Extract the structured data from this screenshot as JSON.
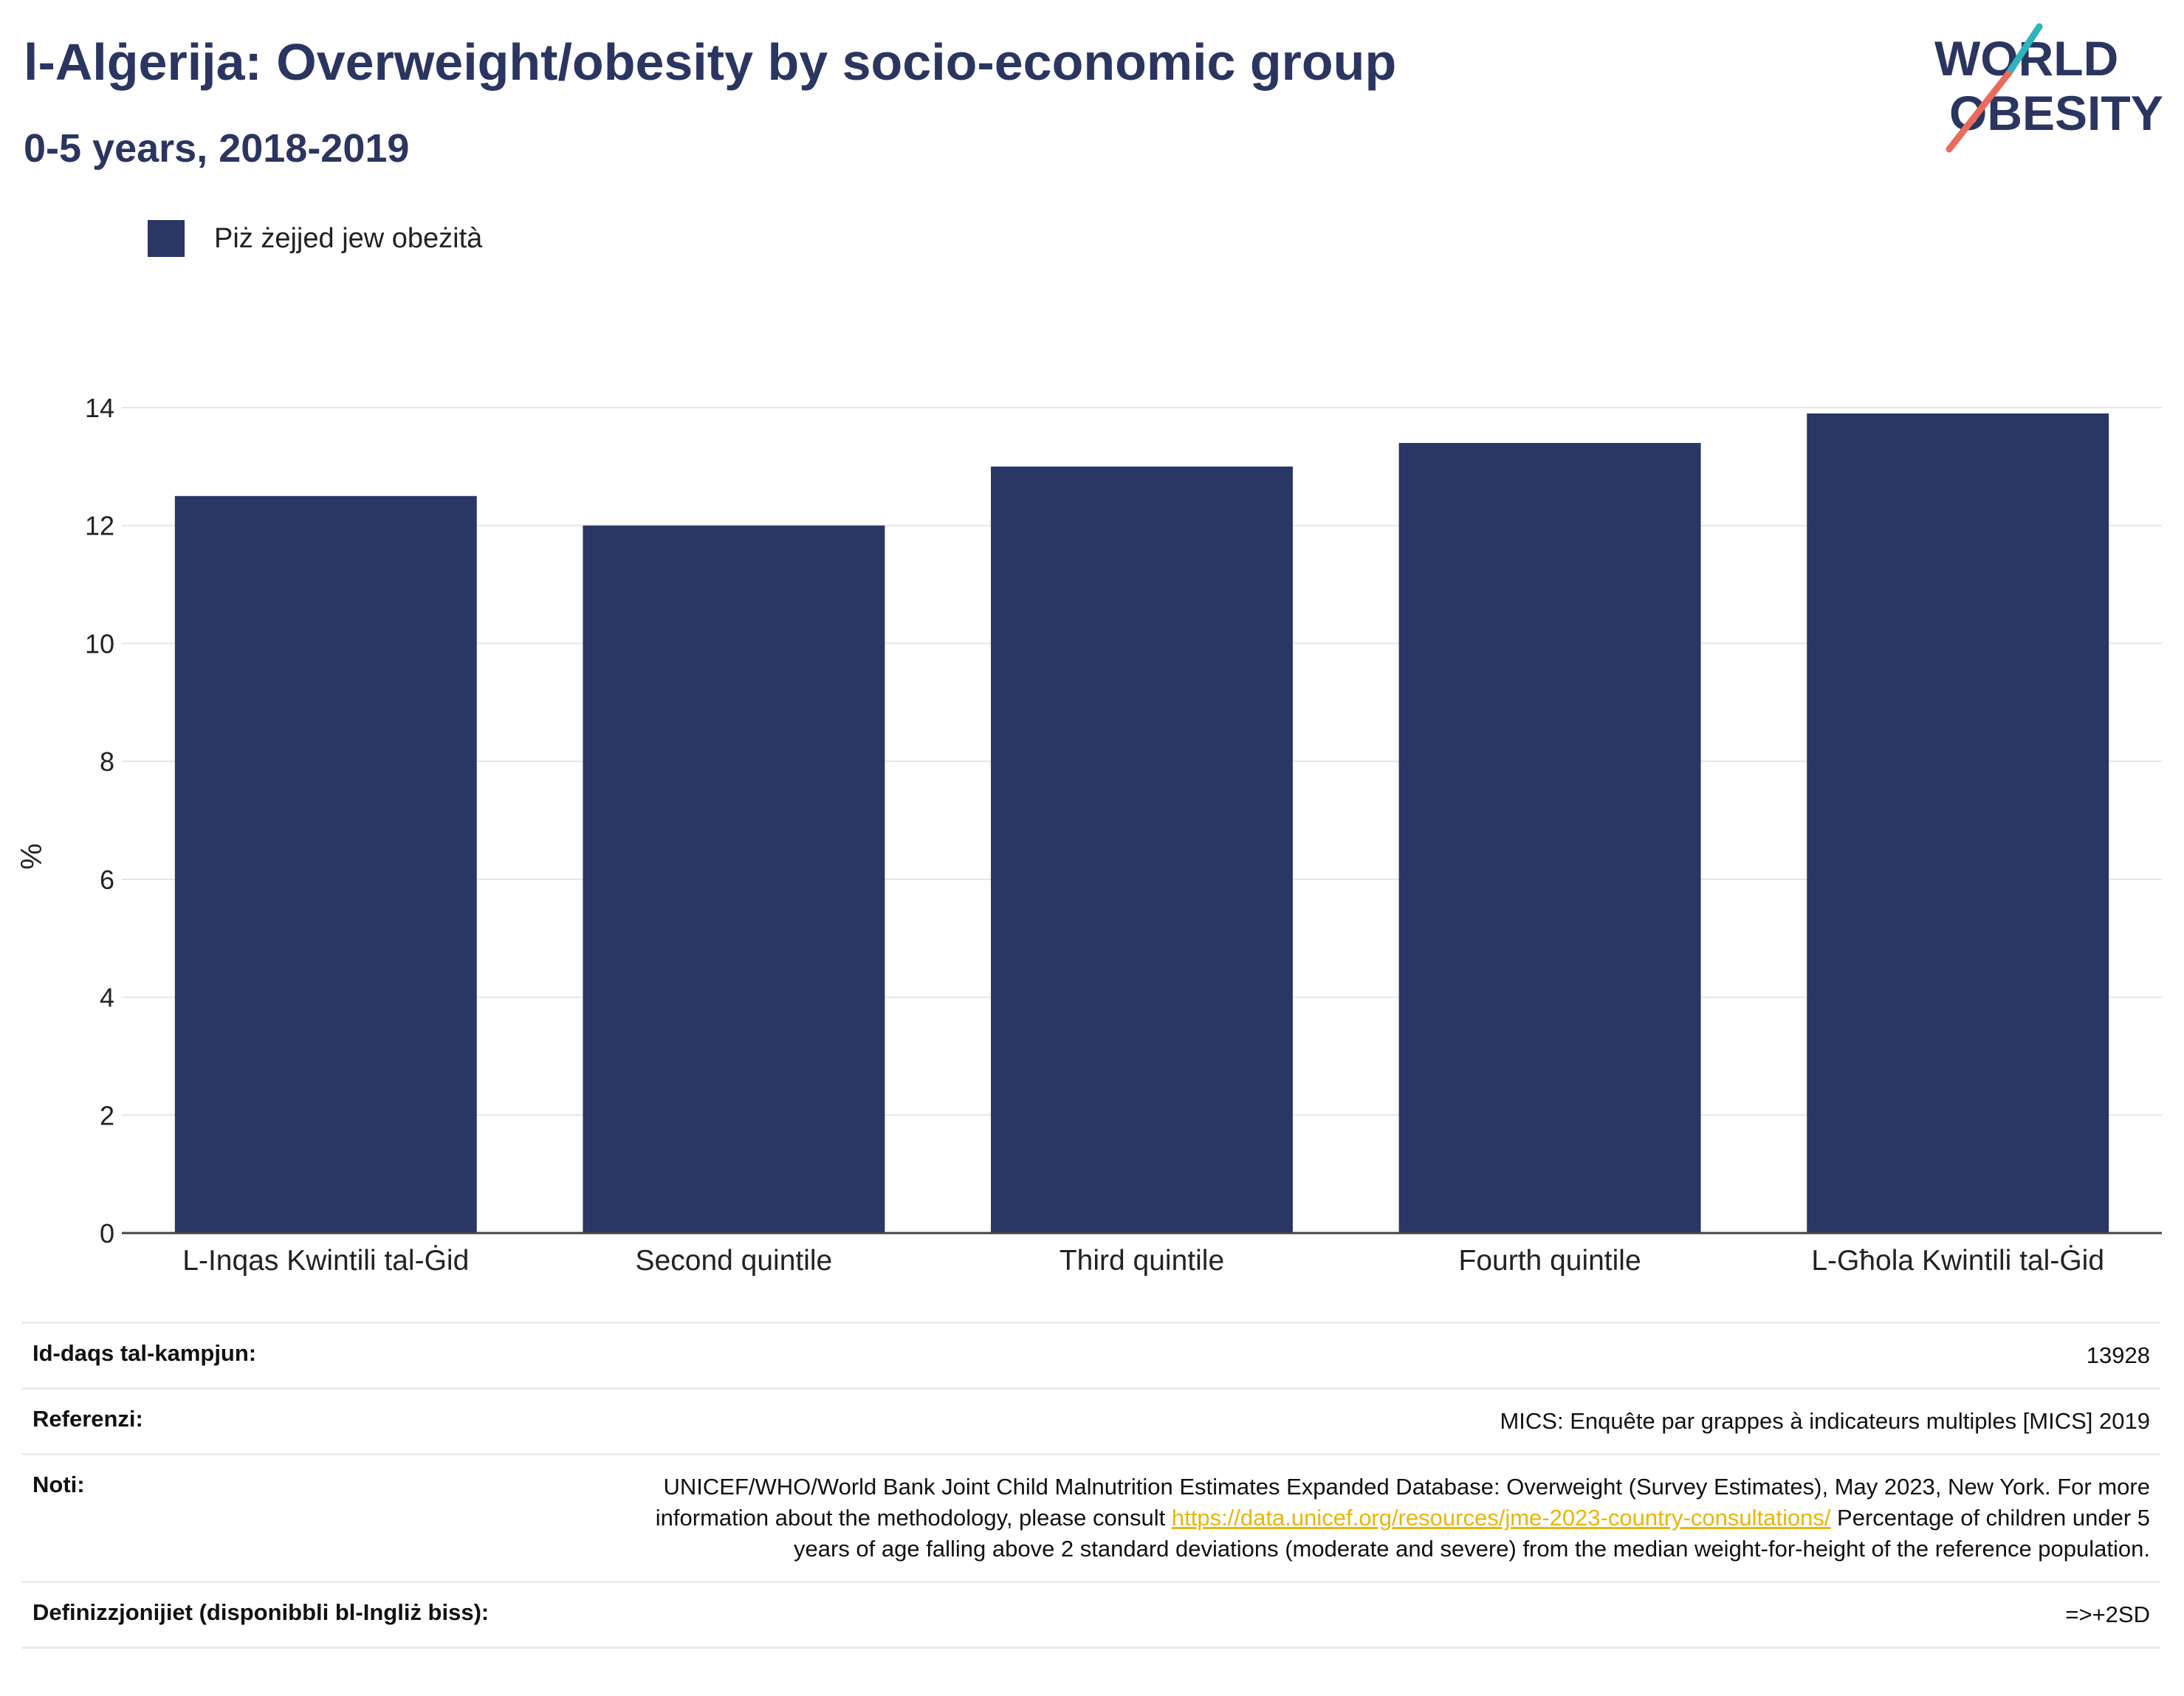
{
  "header": {
    "title": "l-Alġerija: Overweight/obesity by socio-economic group",
    "subtitle": "0-5 years, 2018-2019"
  },
  "logo": {
    "line1": "WORLD",
    "line2": "OBESITY",
    "colors": {
      "text": "#2a3560",
      "slash_teal": "#2fb3bd",
      "slash_coral": "#ea6b5d"
    }
  },
  "legend": {
    "items": [
      {
        "label": "Piż żejjed jew obeżità",
        "color": "#2a3663"
      }
    ]
  },
  "chart_data": {
    "type": "bar",
    "title": "l-Alġerija: Overweight/obesity by socio-economic group",
    "subtitle": "0-5 years, 2018-2019",
    "categories": [
      "L-Inqas Kwintili tal-Ġid",
      "Second quintile",
      "Third quintile",
      "Fourth quintile",
      "L-Għola Kwintili tal-Ġid"
    ],
    "series": [
      {
        "name": "Piż żejjed jew obeżità",
        "values": [
          12.5,
          12.0,
          13.0,
          13.4,
          13.9
        ],
        "color": "#2a3663"
      }
    ],
    "xlabel": "",
    "ylabel": "%",
    "ylim": [
      0,
      14
    ],
    "yticks": [
      0,
      2,
      4,
      6,
      8,
      10,
      12,
      14
    ],
    "grid": true,
    "legend_position": "top-left"
  },
  "meta": {
    "rows": [
      {
        "key": "Id-daqs tal-kampjun:",
        "value": "13928"
      },
      {
        "key": "Referenzi:",
        "value": "MICS: Enquête par grappes à indicateurs multiples [MICS] 2019"
      },
      {
        "key": "Noti:",
        "value_pre": "UNICEF/WHO/World Bank Joint Child Malnutrition Estimates Expanded Database: Overweight (Survey Estimates), May 2023, New York. For more information about the methodology, please consult ",
        "link": "https://data.unicef.org/resources/jme-2023-country-consultations/",
        "value_post": " Percentage of children under 5 years of age falling above 2 standard deviations (moderate and severe) from the median weight-for-height of the reference population."
      },
      {
        "key": "Definizzjonijiet (disponibbli bl-Ingliż biss):",
        "value": "=>+2SD"
      }
    ]
  }
}
